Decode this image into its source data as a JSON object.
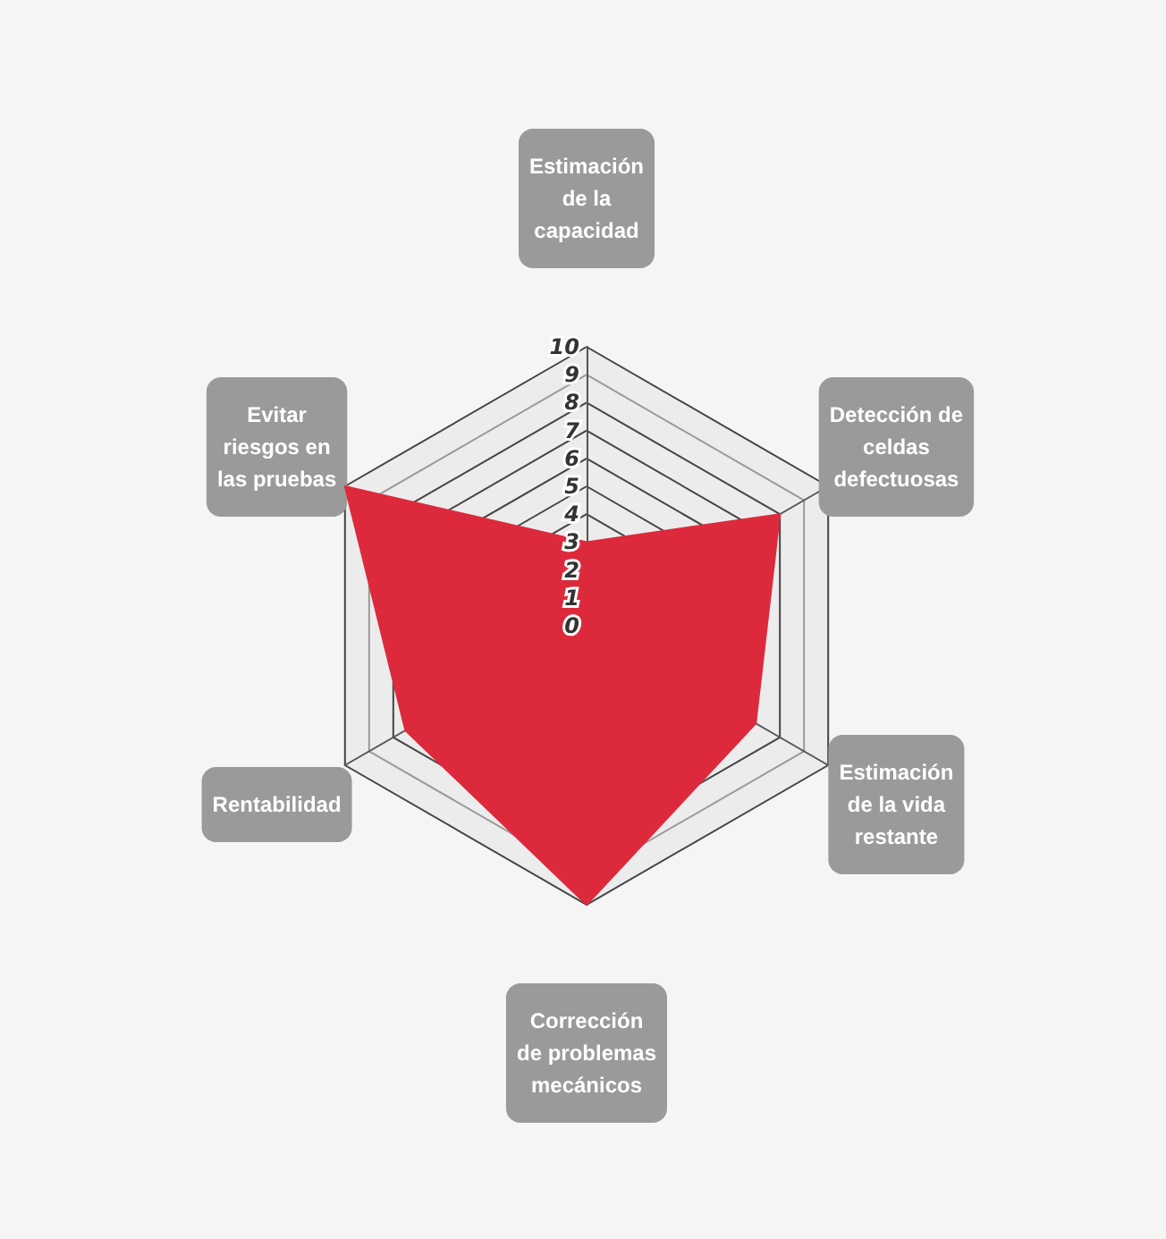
{
  "chart_data": {
    "type": "radar",
    "categories": [
      "Estimación de la capacidad",
      "Detección de celdas defectuosas",
      "Estimación de la vida restante",
      "Corrección de problemas mecánicos",
      "Rentabilidad",
      "Evitar riesgos en las pruebas"
    ],
    "series": [
      {
        "color": "#dc2a3c",
        "values": [
          3,
          8,
          7,
          10,
          7.5,
          10
        ]
      }
    ],
    "ylim": [
      0,
      10
    ],
    "yticks": [
      0,
      1,
      2,
      3,
      4,
      5,
      6,
      7,
      8,
      9,
      10
    ],
    "marker": "none"
  }
}
